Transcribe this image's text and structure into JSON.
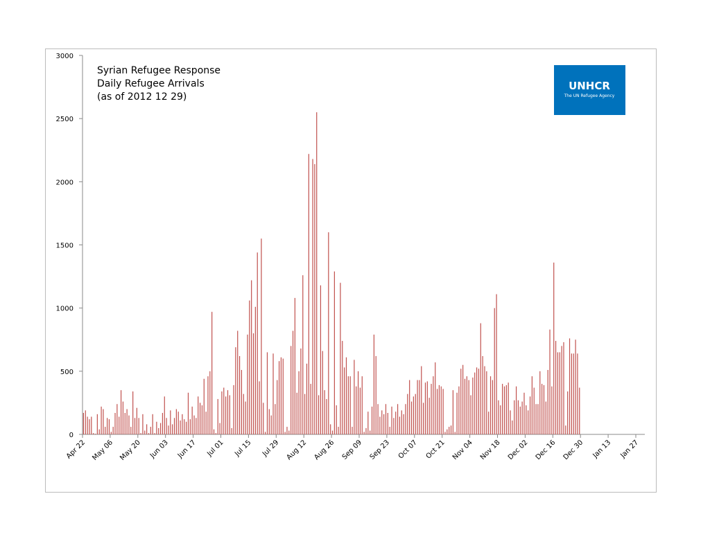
{
  "chart_data": {
    "type": "bar",
    "title": "Syrian Refugee Response",
    "subtitle": "Daily Refugee Arrivals",
    "annotation": "(as of 2012 12 29)",
    "logo": {
      "name": "UNHCR",
      "tagline": "The UN Refugee Agency"
    },
    "color": "#c0504d",
    "ylim": [
      0,
      3000
    ],
    "yticks": [
      0,
      500,
      1000,
      1500,
      2000,
      2500,
      3000
    ],
    "grid": false,
    "categories": [
      "Apr 22",
      null,
      null,
      null,
      null,
      null,
      null,
      null,
      null,
      null,
      null,
      null,
      null,
      null,
      "May 06",
      null,
      null,
      null,
      null,
      null,
      null,
      null,
      null,
      null,
      null,
      null,
      null,
      null,
      "May 20",
      null,
      null,
      null,
      null,
      null,
      null,
      null,
      null,
      null,
      null,
      null,
      null,
      null,
      "Jun 03",
      null,
      null,
      null,
      null,
      null,
      null,
      null,
      null,
      null,
      null,
      null,
      null,
      null,
      "Jun 17",
      null,
      null,
      null,
      null,
      null,
      null,
      null,
      null,
      null,
      null,
      null,
      null,
      null,
      "Jul 01",
      null,
      null,
      null,
      null,
      null,
      null,
      null,
      null,
      null,
      null,
      null,
      null,
      null,
      "Jul 15",
      null,
      null,
      null,
      null,
      null,
      null,
      null,
      null,
      null,
      null,
      null,
      null,
      null,
      "Jul 29",
      null,
      null,
      null,
      null,
      null,
      null,
      null,
      null,
      null,
      null,
      null,
      null,
      null,
      "Aug 12",
      null,
      null,
      null,
      null,
      null,
      null,
      null,
      null,
      null,
      null,
      null,
      null,
      null,
      "Aug 26",
      null,
      null,
      null,
      null,
      null,
      null,
      null,
      null,
      null,
      null,
      null,
      null,
      null,
      "Sep 09",
      null,
      null,
      null,
      null,
      null,
      null,
      null,
      null,
      null,
      null,
      null,
      null,
      null,
      "Sep 23",
      null,
      null,
      null,
      null,
      null,
      null,
      null,
      null,
      null,
      null,
      null,
      null,
      null,
      "Oct 07",
      null,
      null,
      null,
      null,
      null,
      null,
      null,
      null,
      null,
      null,
      null,
      null,
      null,
      "Oct 21",
      null,
      null,
      null,
      null,
      null,
      null,
      null,
      null,
      null,
      null,
      null,
      null,
      null,
      "Nov 04",
      null,
      null,
      null,
      null,
      null,
      null,
      null,
      null,
      null,
      null,
      null,
      null,
      null,
      "Nov 18",
      null,
      null,
      null,
      null,
      null,
      null,
      null,
      null,
      null,
      null,
      null,
      null,
      null,
      "Dec 02",
      null,
      null,
      null,
      null,
      null,
      null,
      null,
      null,
      null,
      null,
      null,
      null,
      null,
      "Dec 16",
      null,
      null,
      null,
      null,
      null,
      null,
      null,
      null,
      null,
      null,
      null,
      null,
      null,
      "Dec 30",
      null,
      null,
      null,
      null,
      null,
      null,
      null,
      null,
      null,
      null,
      null,
      null,
      null,
      "Jan 13",
      null,
      null,
      null,
      null,
      null,
      null,
      null,
      null,
      null,
      null,
      null,
      null,
      null,
      "Jan 27"
    ],
    "values": [
      170,
      190,
      140,
      120,
      140,
      10,
      5,
      160,
      40,
      220,
      200,
      60,
      130,
      120,
      20,
      60,
      170,
      240,
      140,
      350,
      260,
      170,
      200,
      150,
      60,
      340,
      130,
      210,
      130,
      10,
      160,
      30,
      80,
      10,
      60,
      160,
      10,
      100,
      50,
      90,
      170,
      300,
      130,
      70,
      190,
      80,
      130,
      200,
      180,
      110,
      160,
      120,
      100,
      330,
      120,
      220,
      150,
      130,
      300,
      250,
      230,
      440,
      180,
      460,
      500,
      970,
      40,
      10,
      280,
      90,
      340,
      370,
      300,
      350,
      310,
      50,
      390,
      690,
      820,
      620,
      510,
      320,
      260,
      790,
      1060,
      1220,
      800,
      1010,
      1440,
      420,
      1550,
      250,
      20,
      650,
      200,
      150,
      640,
      240,
      430,
      580,
      610,
      600,
      20,
      60,
      30,
      700,
      820,
      1080,
      330,
      500,
      680,
      1260,
      320,
      560,
      2220,
      400,
      2180,
      2140,
      2550,
      310,
      1180,
      660,
      350,
      280,
      1600,
      80,
      30,
      1290,
      230,
      60,
      1200,
      740,
      530,
      610,
      460,
      460,
      60,
      590,
      380,
      500,
      370,
      460,
      20,
      50,
      180,
      30,
      220,
      790,
      620,
      240,
      140,
      190,
      160,
      240,
      170,
      60,
      220,
      130,
      180,
      240,
      140,
      190,
      160,
      240,
      320,
      430,
      260,
      300,
      320,
      430,
      430,
      540,
      250,
      410,
      420,
      290,
      400,
      460,
      570,
      360,
      390,
      380,
      360,
      20,
      40,
      60,
      70,
      350,
      20,
      330,
      380,
      520,
      550,
      440,
      460,
      430,
      310,
      450,
      490,
      530,
      520,
      880,
      620,
      540,
      500,
      180,
      460,
      430,
      1000,
      1110,
      270,
      230,
      400,
      380,
      390,
      410,
      190,
      110,
      270,
      380,
      270,
      220,
      260,
      330,
      230,
      190,
      300,
      460,
      370,
      240,
      240,
      500,
      400,
      390,
      260,
      510,
      830,
      380,
      1360,
      740,
      650,
      650,
      700,
      730,
      70,
      340,
      760,
      640,
      640,
      750,
      640,
      370,
      null,
      null,
      null,
      null,
      null,
      null,
      null,
      null,
      null,
      null,
      null,
      null,
      null,
      null,
      null,
      null,
      null,
      null,
      null,
      null,
      null,
      null,
      null,
      null,
      null,
      null,
      null,
      null,
      null
    ]
  }
}
